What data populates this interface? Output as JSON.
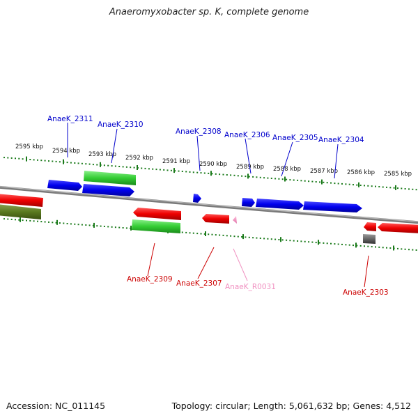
{
  "title": "Anaeromyxobacter sp. K, complete genome",
  "footer": {
    "accession": "Accession: NC_011145",
    "stats": "Topology: circular; Length: 5,061,632 bp; Genes: 4,512"
  },
  "colors": {
    "plus_cds": "#0000ee",
    "minus_cds": "#ee0000",
    "rna": "#f090c0",
    "plus_label": "#0000cc",
    "minus_label": "#cc0000",
    "rna_label": "#f090c0",
    "tick": "#1a7a1a",
    "backbone": "#808080"
  },
  "ticks": [
    {
      "label": "2595 kbp"
    },
    {
      "label": "2594 kbp"
    },
    {
      "label": "2593 kbp"
    },
    {
      "label": "2592 kbp"
    },
    {
      "label": "2591 kbp"
    },
    {
      "label": "2590 kbp"
    },
    {
      "label": "2589 kbp"
    },
    {
      "label": "2588 kbp"
    },
    {
      "label": "2587 kbp"
    },
    {
      "label": "2586 kbp"
    },
    {
      "label": "2585 kbp"
    }
  ],
  "gene_labels": [
    {
      "text": "AnaeK_2311",
      "strand": "plus"
    },
    {
      "text": "AnaeK_2310",
      "strand": "plus"
    },
    {
      "text": "AnaeK_2308",
      "strand": "plus"
    },
    {
      "text": "AnaeK_2306",
      "strand": "plus"
    },
    {
      "text": "AnaeK_2305",
      "strand": "plus"
    },
    {
      "text": "AnaeK_2304",
      "strand": "plus"
    },
    {
      "text": "AnaeK_2309",
      "strand": "minus"
    },
    {
      "text": "AnaeK_2307",
      "strand": "minus"
    },
    {
      "text": "AnaeK_R0031",
      "strand": "rna"
    },
    {
      "text": "AnaeK_2303",
      "strand": "minus"
    }
  ]
}
